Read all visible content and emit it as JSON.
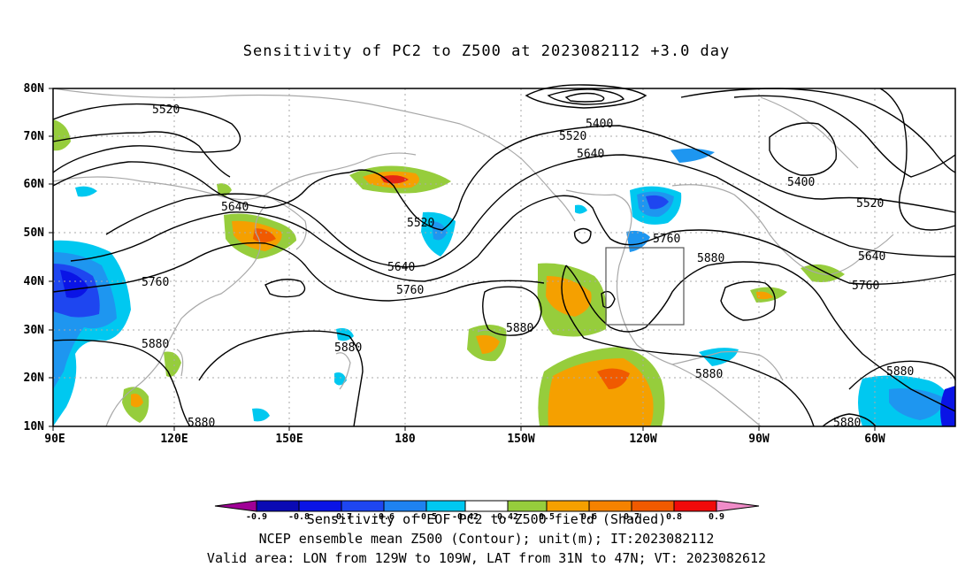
{
  "title": "Sensitivity of PC2 to Z500 at 2023082112 +3.0 day",
  "colors": {
    "contour": "#000000",
    "coast": "#a8a8a8",
    "grid": "#aaaaaa",
    "green": "#96cd3c",
    "orange": "#f5a000",
    "red_orange": "#f06400",
    "red": "#e61e0a",
    "cyan": "#00c8f0",
    "sky": "#1e96f0",
    "blue": "#1e64f0",
    "navy": "#0a0ad2"
  },
  "map": {
    "lat_labels": [
      "80N",
      "70N",
      "60N",
      "50N",
      "40N",
      "30N",
      "20N",
      "10N"
    ],
    "lon_labels": [
      "90E",
      "120E",
      "150E",
      "180",
      "150W",
      "120W",
      "90W",
      "60W"
    ],
    "contour_labels": [
      "5520",
      "5400",
      "5520",
      "5640",
      "5400",
      "5640",
      "5520",
      "5520",
      "5760",
      "5880",
      "5640",
      "5760",
      "5760",
      "5640",
      "5760",
      "5880",
      "5880",
      "5880",
      "5880",
      "5880",
      "5880",
      "5880"
    ],
    "valid_area": {
      "lon_min": "129W",
      "lon_max": "109W",
      "lat_min": "31N",
      "lat_max": "47N"
    }
  },
  "colorbar": {
    "labels": [
      "-0.9",
      "-0.8",
      "-0.7",
      "-0.6",
      "-0.5",
      "-0.42",
      "0.42",
      "0.5",
      "0.6",
      "0.7",
      "0.8",
      "0.9"
    ],
    "colors": [
      "#a00096",
      "#0a0ab4",
      "#0a14e6",
      "#1e46f0",
      "#1e82f0",
      "#14b4f0",
      "#00dcf5",
      "#ffffff",
      "#96cd3c",
      "#f5a000",
      "#f58200",
      "#f05a00",
      "#e62814",
      "#f00a0a",
      "#f08cc8"
    ]
  },
  "captions": {
    "line1": "Sensitivity of EOF PC2 to Z500 field (Shaded)",
    "line2": "NCEP ensemble mean Z500 (Contour); unit(m); IT:2023082112",
    "line3": "Valid area: LON from 129W to 109W, LAT from 31N to 47N; VT: 2023082612"
  }
}
